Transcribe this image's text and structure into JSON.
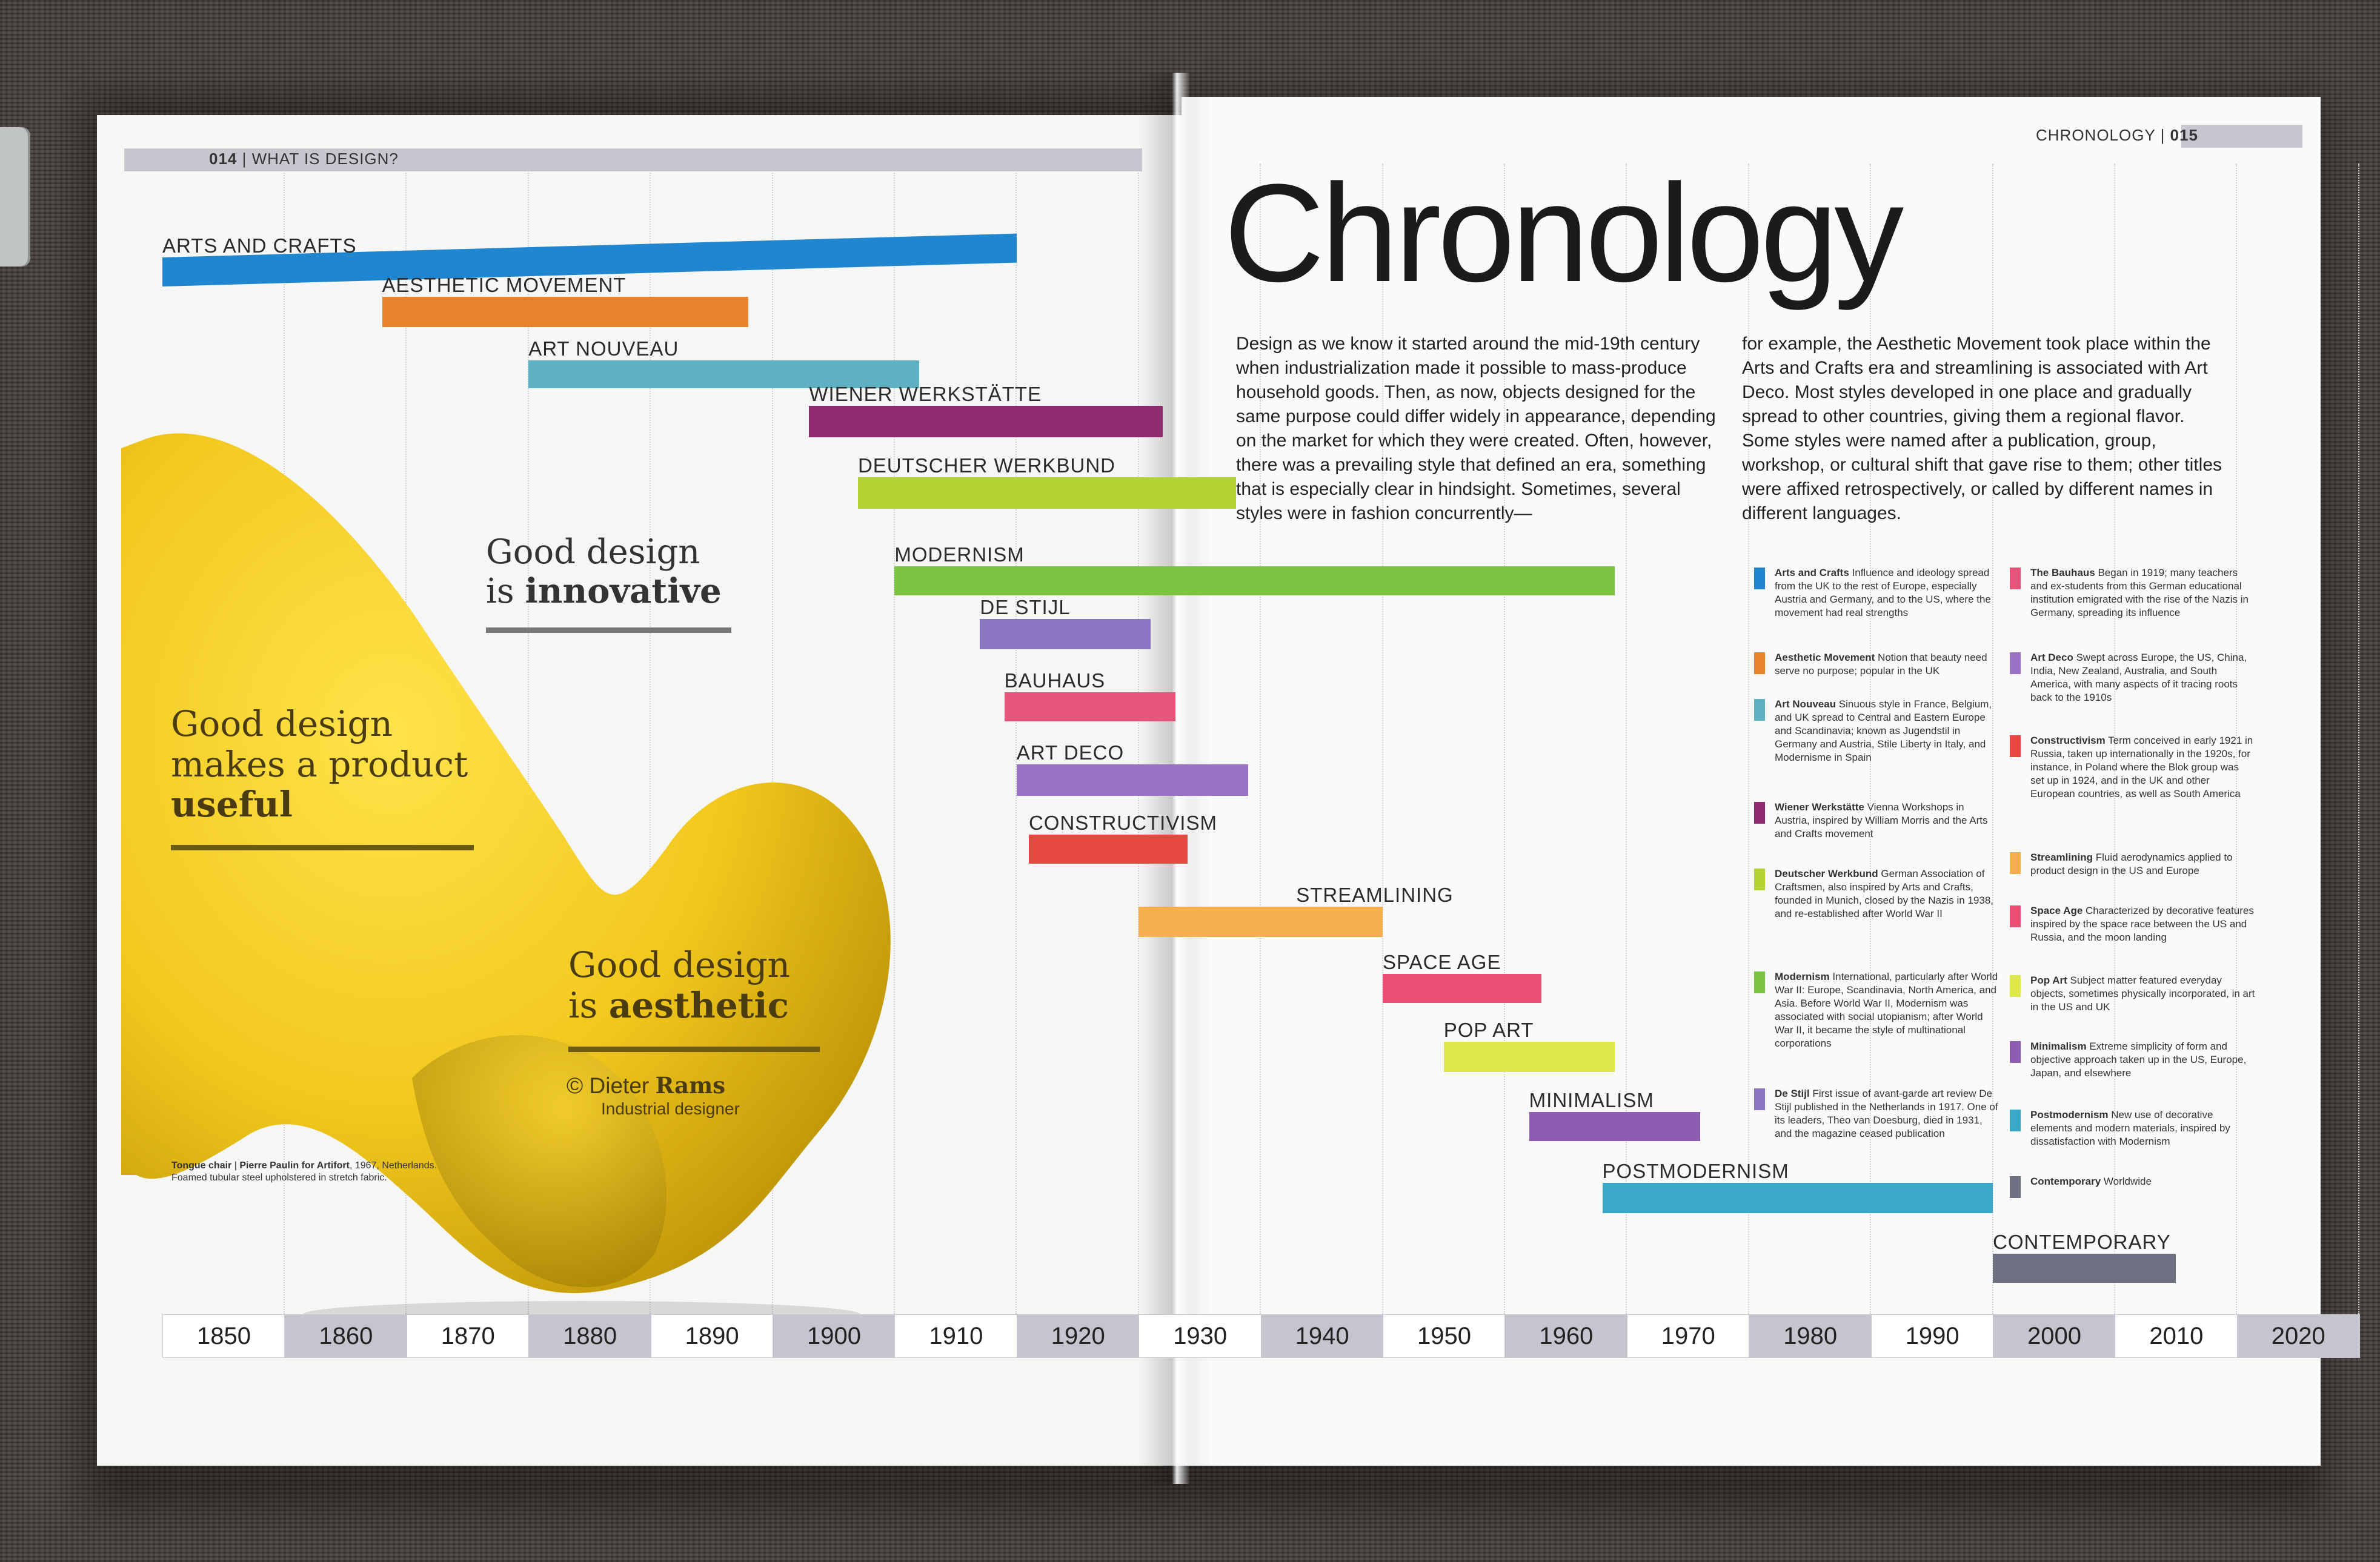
{
  "header_left": {
    "page_number": "014",
    "section": "WHAT IS DESIGN?"
  },
  "header_right": {
    "section": "CHRONOLOGY",
    "page_number": "015"
  },
  "title": "Chronology",
  "intro": {
    "col1": "Design as we know it started around the mid-19th century when industrialization made it possible to mass-produce household goods. Then, as now, objects designed for the same purpose could differ widely in appearance, depending on the market for which they were created. Often, however, there was a prevailing style that defined an era, something that is especially clear in hindsight. Sometimes, several styles were in fashion concurrently—",
    "col2": "for example, the Aesthetic Movement took place within the Arts and Crafts era and streamlining is associated with Art Deco. Most styles developed in one place and gradually spread to other countries, giving them a regional flavor. Some styles were named after a publication, group, workshop, or cultural shift that gave rise to them; other titles were affixed retrospectively, or called by different names in different languages."
  },
  "timeline_decades": [
    "1850",
    "1860",
    "1870",
    "1880",
    "1890",
    "1900",
    "1910",
    "1920",
    "1930",
    "1940",
    "1950",
    "1960",
    "1970",
    "1980",
    "1990",
    "2000",
    "2010",
    "2020"
  ],
  "movements": [
    {
      "label": "ARTS AND CRAFTS",
      "start": 1850,
      "end": 1920,
      "color": "#1f86cf"
    },
    {
      "label": "AESTHETIC MOVEMENT",
      "start": 1868,
      "end": 1898,
      "color": "#e8822f"
    },
    {
      "label": "ART NOUVEAU",
      "start": 1880,
      "end": 1912,
      "color": "#5fb0c2"
    },
    {
      "label": "WIENER WERKSTÄTTE",
      "start": 1903,
      "end": 1932,
      "color": "#8e2a6f"
    },
    {
      "label": "DEUTSCHER WERKBUND",
      "start": 1907,
      "end": 1938,
      "color": "#b3d334"
    },
    {
      "label": "MODERNISM",
      "start": 1910,
      "end": 1969,
      "color": "#7ec242"
    },
    {
      "label": "DE STIJL",
      "start": 1917,
      "end": 1931,
      "color": "#8a75c2"
    },
    {
      "label": "BAUHAUS",
      "start": 1919,
      "end": 1933,
      "color": "#e6557a"
    },
    {
      "label": "ART DECO",
      "start": 1920,
      "end": 1939,
      "color": "#9a73c9"
    },
    {
      "label": "CONSTRUCTIVISM",
      "start": 1921,
      "end": 1934,
      "color": "#e5483e"
    },
    {
      "label": "STREAMLINING",
      "start": 1930,
      "end": 1950,
      "color": "#f5b04e"
    },
    {
      "label": "SPACE AGE",
      "start": 1950,
      "end": 1963,
      "color": "#ec4f74"
    },
    {
      "label": "POP ART",
      "start": 1955,
      "end": 1969,
      "color": "#dde74a"
    },
    {
      "label": "MINIMALISM",
      "start": 1962,
      "end": 1976,
      "color": "#8d5bb0"
    },
    {
      "label": "POSTMODERNISM",
      "start": 1968,
      "end": 2000,
      "color": "#3aa9c8"
    },
    {
      "label": "CONTEMPORARY",
      "start": 2000,
      "end": 2015,
      "color": "#6e6f80"
    }
  ],
  "legend": [
    {
      "name": "Arts and Crafts",
      "text": "Influence and ideology spread from the UK to the rest of Europe, especially Austria and Germany, and to the US, where the movement had real strengths",
      "color": "#1f86cf"
    },
    {
      "name": "Aesthetic Movement",
      "text": "Notion that beauty need serve no purpose; popular in the UK",
      "color": "#e8822f"
    },
    {
      "name": "Art Nouveau",
      "text": "Sinuous style in France, Belgium, and UK spread to Central and Eastern Europe and Scandinavia; known as Jugendstil in Germany and Austria, Stile Liberty in Italy, and Modernisme in Spain",
      "color": "#5fb0c2"
    },
    {
      "name": "Wiener Werkstätte",
      "text": "Vienna Workshops in Austria, inspired by William Morris and the Arts and Crafts movement",
      "color": "#8e2a6f"
    },
    {
      "name": "Deutscher Werkbund",
      "text": "German Association of Craftsmen, also inspired by Arts and Crafts, founded in Munich, closed by the Nazis in 1938, and re-established after World War II",
      "color": "#b3d334"
    },
    {
      "name": "Modernism",
      "text": "International, particularly after World War II: Europe, Scandinavia, North America, and Asia. Before World War II, Modernism was associated with social utopianism; after World War II, it became the style of multinational corporations",
      "color": "#7ec242"
    },
    {
      "name": "De Stijl",
      "text": "First issue of avant-garde art review De Stijl published in the Netherlands in 1917. One of its leaders, Theo van Doesburg, died in 1931, and the magazine ceased publication",
      "color": "#8a75c2"
    },
    {
      "name": "The Bauhaus",
      "text": "Began in 1919; many teachers and ex-students from this German educational institution emigrated with the rise of the Nazis in Germany, spreading its influence",
      "color": "#e6557a"
    },
    {
      "name": "Art Deco",
      "text": "Swept across Europe, the US, China, India, New Zealand, Australia, and South America, with many aspects of it tracing roots back to the 1910s",
      "color": "#9a73c9"
    },
    {
      "name": "Constructivism",
      "text": "Term conceived in early 1921 in Russia, taken up internationally in the 1920s, for instance, in Poland where the Blok group was set up in 1924, and in the UK and other European countries, as well as South America",
      "color": "#e5483e"
    },
    {
      "name": "Streamlining",
      "text": "Fluid aerodynamics applied to product design in the US and Europe",
      "color": "#f5b04e"
    },
    {
      "name": "Space Age",
      "text": "Characterized by decorative features inspired by the space race between the US and Russia, and the moon landing",
      "color": "#ec4f74"
    },
    {
      "name": "Pop Art",
      "text": "Subject matter featured everyday objects, sometimes physically incorporated, in art in the US and UK",
      "color": "#dde74a"
    },
    {
      "name": "Minimalism",
      "text": "Extreme simplicity of form and objective approach taken up in the US, Europe, Japan, and elsewhere",
      "color": "#8d5bb0"
    },
    {
      "name": "Postmodernism",
      "text": "New use of decorative elements and modern materials, inspired by dissatisfaction with Modernism",
      "color": "#3aa9c8"
    },
    {
      "name": "Contemporary",
      "text": "Worldwide",
      "color": "#6e6f80"
    }
  ],
  "quotes": {
    "innovative": {
      "line1": "Good design",
      "line2_pre": "is ",
      "line2_bold": "innovative"
    },
    "useful": {
      "line1": "Good design",
      "line2": "makes a product",
      "line3": "useful"
    },
    "aesthetic": {
      "line1": "Good design",
      "line2_pre": "is ",
      "line2_bold": "aesthetic"
    }
  },
  "attribution": {
    "pre": "© Dieter ",
    "bold": "Rams",
    "sub": "Industrial designer"
  },
  "caption": {
    "title": "Tongue chair",
    "maker": "Pierre Paulin for Artifort",
    "year": "1967",
    "country": "Netherlands.",
    "desc": "Foamed tubular steel upholstered in stretch fabric."
  }
}
